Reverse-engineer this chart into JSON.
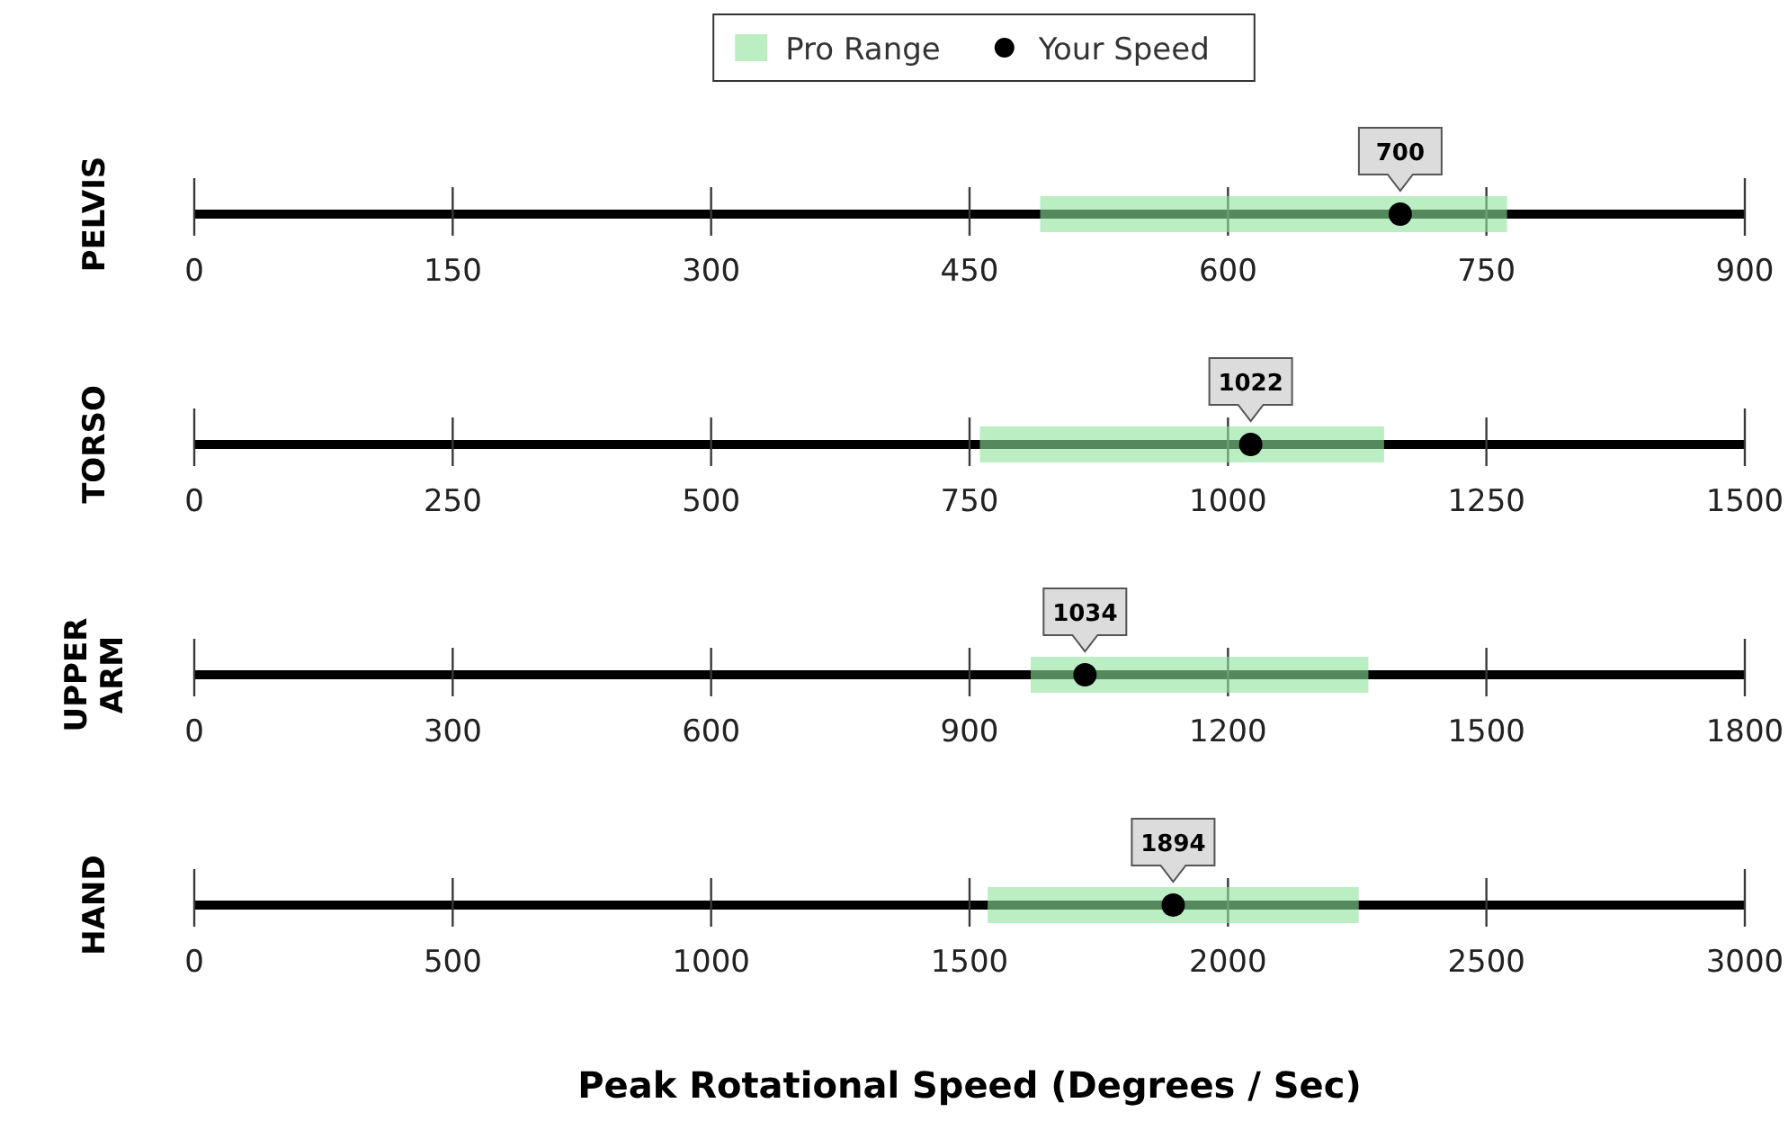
{
  "chart_data": [
    {
      "type": "scatter",
      "orientation": "horizontal",
      "legend": "top",
      "categories": [
        "PELVIS"
      ],
      "xlim": [
        0,
        900
      ],
      "xticks": [
        0,
        150,
        300,
        450,
        600,
        750,
        900
      ],
      "series": [
        {
          "name": "Your Speed",
          "color": "#000000",
          "values": [
            700
          ],
          "value_labels": [
            "700"
          ]
        }
      ],
      "bands": [
        {
          "axis": "x",
          "from": 491,
          "to": 762,
          "label": "Pro Range",
          "color": "#8ee29a"
        }
      ]
    },
    {
      "type": "scatter",
      "orientation": "horizontal",
      "categories": [
        "TORSO"
      ],
      "xlim": [
        0,
        1500
      ],
      "xticks": [
        0,
        250,
        500,
        750,
        1000,
        1250,
        1500
      ],
      "series": [
        {
          "color": "#000000",
          "values": [
            1022
          ],
          "value_labels": [
            "1022"
          ]
        }
      ],
      "bands": [
        {
          "axis": "x",
          "from": 760,
          "to": 1151,
          "color": "#8ee29a"
        }
      ]
    },
    {
      "type": "scatter",
      "orientation": "horizontal",
      "categories": [
        "UPPER ARM"
      ],
      "xlim": [
        0,
        1800
      ],
      "xticks": [
        0,
        300,
        600,
        900,
        1200,
        1500,
        1800
      ],
      "series": [
        {
          "color": "#000000",
          "values": [
            1034
          ],
          "value_labels": [
            "1034"
          ]
        }
      ],
      "bands": [
        {
          "axis": "x",
          "from": 971,
          "to": 1363,
          "color": "#8ee29a"
        }
      ]
    },
    {
      "type": "scatter",
      "orientation": "horizontal",
      "xlabel": "Peak Rotational Speed (Degrees / Sec)",
      "categories": [
        "HAND"
      ],
      "xlim": [
        0,
        3000
      ],
      "xticks": [
        0,
        500,
        1000,
        1500,
        2000,
        2500,
        3000
      ],
      "series": [
        {
          "color": "#000000",
          "values": [
            1894
          ],
          "value_labels": [
            "1894"
          ]
        }
      ],
      "bands": [
        {
          "axis": "x",
          "from": 1535,
          "to": 2253,
          "color": "#8ee29a"
        }
      ]
    }
  ]
}
